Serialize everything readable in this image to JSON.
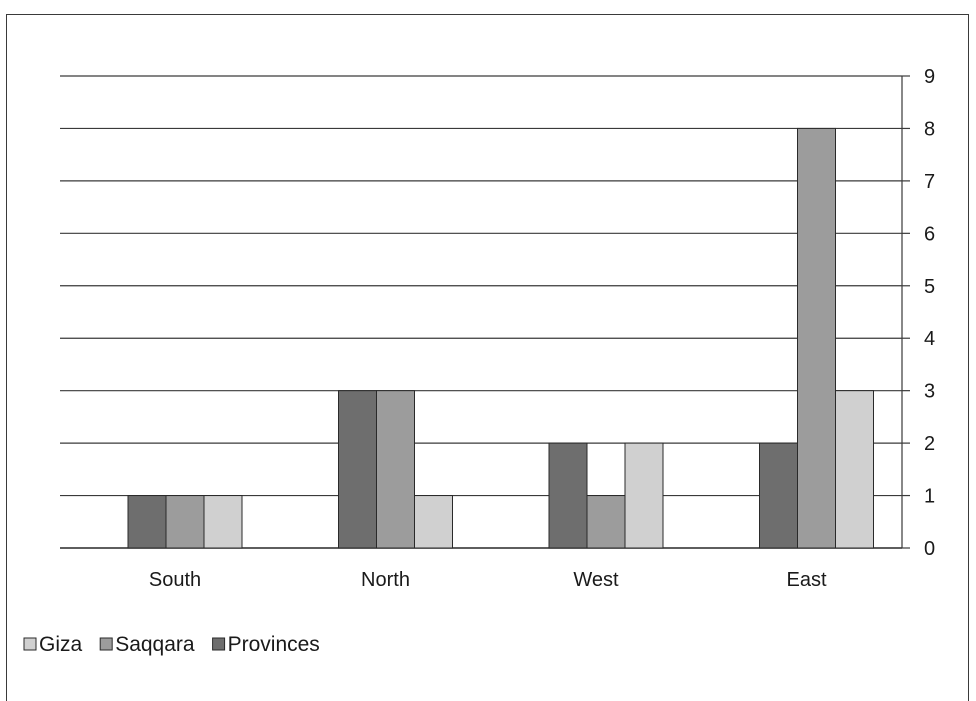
{
  "chart_data": {
    "type": "bar",
    "categories": [
      "South",
      "North",
      "West",
      "East"
    ],
    "series": [
      {
        "name": "Provinces",
        "values": [
          1,
          3,
          2,
          2
        ],
        "color": "#6e6e6e"
      },
      {
        "name": "Saqqara",
        "values": [
          1,
          3,
          1,
          8
        ],
        "color": "#9c9c9c"
      },
      {
        "name": "Giza",
        "values": [
          1,
          1,
          2,
          3
        ],
        "color": "#d0d0d0"
      }
    ],
    "legend_order": [
      "Giza",
      "Saqqara",
      "Provinces"
    ],
    "ylim": [
      0,
      9
    ],
    "yticks": [
      "0",
      "1",
      "2",
      "3",
      "4",
      "5",
      "6",
      "7",
      "8",
      "9"
    ],
    "y_axis_position": "right",
    "grid": true,
    "legend_position": "bottom-left",
    "title": "",
    "xlabel": "",
    "ylabel": ""
  },
  "colors": {
    "gridline": "#3a3a3a",
    "bar_stroke": "#2a2a2a",
    "text": "#1a1a1a"
  }
}
